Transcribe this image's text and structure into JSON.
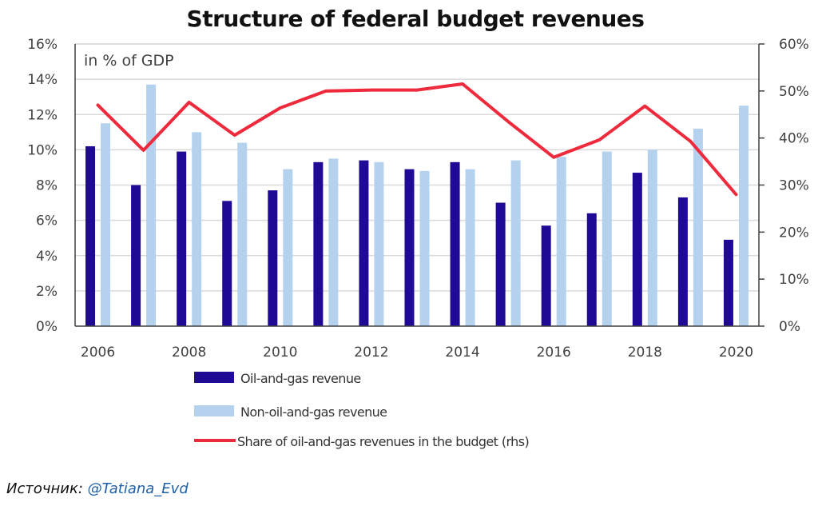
{
  "chart_data": {
    "type": "bar",
    "title": "Structure of federal budget revenues",
    "unit_label": "in % of GDP",
    "xlabel": "",
    "ylabel": "",
    "categories": [
      2006,
      2007,
      2008,
      2009,
      2010,
      2011,
      2012,
      2013,
      2014,
      2015,
      2016,
      2017,
      2018,
      2019,
      2020
    ],
    "x_tick_labels": [
      "2006",
      "2008",
      "2010",
      "2012",
      "2014",
      "2016",
      "2018",
      "2020"
    ],
    "y_left": {
      "min": 0,
      "max": 16,
      "step": 2,
      "tick_labels": [
        "0%",
        "2%",
        "4%",
        "6%",
        "8%",
        "10%",
        "12%",
        "14%",
        "16%"
      ]
    },
    "y_right": {
      "min": 0,
      "max": 60,
      "step": 10,
      "tick_labels": [
        "0%",
        "10%",
        "20%",
        "30%",
        "40%",
        "50%",
        "60%"
      ]
    },
    "grid": true,
    "legend_position": "bottom",
    "series": [
      {
        "name": "Oil-and-gas revenue",
        "type": "bar",
        "axis": "left",
        "color": "#1f0a96",
        "values": [
          10.2,
          8.0,
          9.9,
          7.1,
          7.7,
          9.3,
          9.4,
          8.9,
          9.3,
          7.0,
          5.7,
          6.4,
          8.7,
          7.3,
          4.9
        ]
      },
      {
        "name": "Non-oil-and-gas revenue",
        "type": "bar",
        "axis": "left",
        "color": "#b4d2ee",
        "values": [
          11.5,
          13.7,
          11.0,
          10.4,
          8.9,
          9.5,
          9.3,
          8.8,
          8.9,
          9.4,
          9.6,
          9.9,
          10.0,
          11.2,
          12.5
        ]
      },
      {
        "name": "Share of oil-and-gas revenues in the budget (rhs)",
        "type": "line",
        "axis": "right",
        "color": "#ee2a3c",
        "values": [
          47.0,
          37.4,
          47.6,
          40.6,
          46.4,
          50.0,
          50.2,
          50.2,
          51.5,
          43.5,
          35.9,
          39.6,
          46.8,
          39.3,
          28.0
        ]
      }
    ]
  },
  "source": {
    "label": "Источник:",
    "handle": "@Tatiana_Evd"
  }
}
